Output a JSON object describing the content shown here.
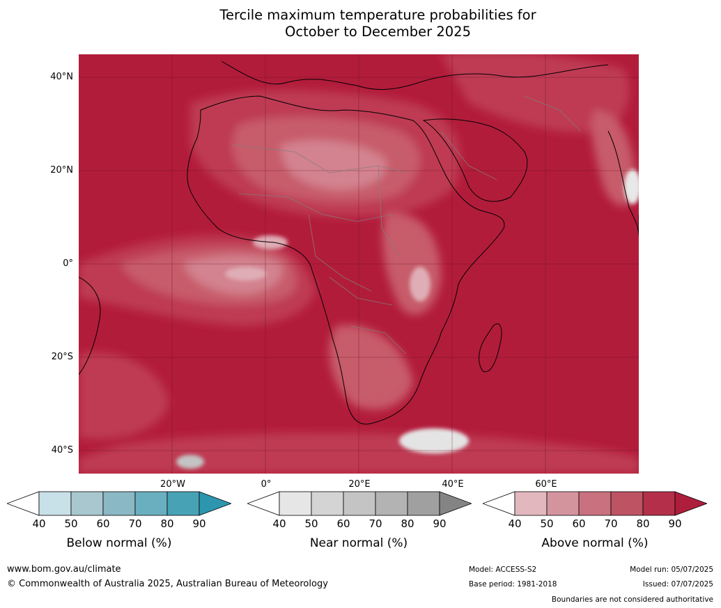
{
  "title": {
    "line1": "Tercile maximum temperature probabilities for",
    "line2": "October to December 2025"
  },
  "axes": {
    "lat_labels": [
      "40°N",
      "20°N",
      "0°",
      "20°S",
      "40°S"
    ],
    "lon_labels": [
      "20°W",
      "0°",
      "20°E",
      "40°E",
      "60°E"
    ]
  },
  "colorbars": [
    {
      "label": "Below normal (%)",
      "ticks": [
        "40",
        "50",
        "60",
        "70",
        "80",
        "90"
      ],
      "colors": [
        "#ffffff",
        "#c8e0e7",
        "#a9c7ce",
        "#8ab8c4",
        "#6aafbf",
        "#48a2b6",
        "#2e95ae"
      ]
    },
    {
      "label": "Near normal (%)",
      "ticks": [
        "40",
        "50",
        "60",
        "70",
        "80",
        "90"
      ],
      "colors": [
        "#ffffff",
        "#e6e6e6",
        "#d4d4d4",
        "#c4c4c4",
        "#b3b3b3",
        "#a0a0a0",
        "#848484"
      ]
    },
    {
      "label": "Above normal (%)",
      "ticks": [
        "40",
        "50",
        "60",
        "70",
        "80",
        "90"
      ],
      "colors": [
        "#ffffff",
        "#e2b8be",
        "#d4949e",
        "#c9717e",
        "#be5363",
        "#b4304a",
        "#ad1d3c"
      ]
    }
  ],
  "footer": {
    "website": "www.bom.gov.au/climate",
    "copyright": "© Commonwealth of Australia 2025, Australian Bureau of Meteorology",
    "model": "Model: ACCESS-S2",
    "base_period": "Base period: 1981-2018",
    "model_run": "Model run: 05/07/2025",
    "issued": "Issued: 07/07/2025",
    "disclaimer": "Boundaries are not considered authoritative"
  },
  "map": {
    "colors": {
      "ocean_dominant": "#b21c3b",
      "band_80": "#be3a52",
      "band_70": "#c75b6b",
      "band_60": "#d3828f",
      "band_50": "#dfadb5",
      "near_normal": "#e4e4e4",
      "coast": "#000000",
      "borders": "#808080",
      "grid": "#5a1020"
    }
  }
}
